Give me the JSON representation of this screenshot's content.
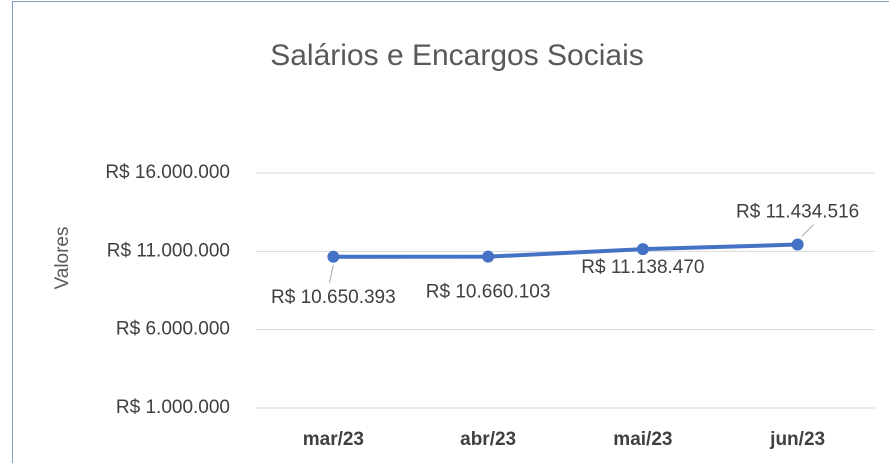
{
  "chart_data": {
    "type": "line",
    "title": "Salários e Encargos Sociais",
    "y_label": "Valores",
    "categories": [
      "mar/23",
      "abr/23",
      "mai/23",
      "jun/23"
    ],
    "series": [
      {
        "name": "Valores",
        "color": "#4472c4",
        "values": [
          10650393,
          10660103,
          11138470,
          11434516
        ],
        "value_labels": [
          "R$ 10.650.393",
          "R$ 10.660.103",
          "R$ 11.138.470",
          "R$ 11.434.516"
        ]
      }
    ],
    "ylim": [
      1000000,
      16000000
    ],
    "yticks": [
      {
        "value": 1000000,
        "label": "R$ 1.000.000"
      },
      {
        "value": 6000000,
        "label": "R$ 6.000.000"
      },
      {
        "value": 11000000,
        "label": "R$ 11.000.000"
      },
      {
        "value": 16000000,
        "label": "R$ 16.000.000"
      }
    ],
    "grid": true
  }
}
